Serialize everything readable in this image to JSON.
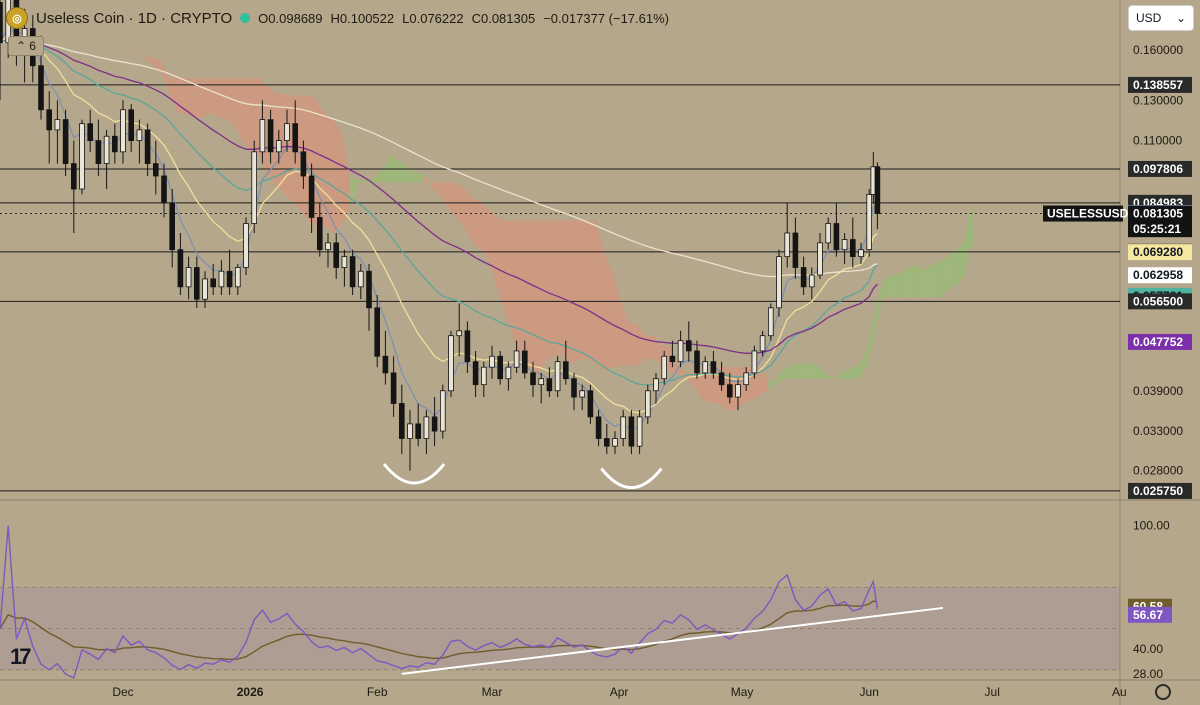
{
  "header": {
    "symbol_title": "Useless Coin · 1D · CRYPTO",
    "open": "O0.098689",
    "high": "H0.100522",
    "low": "L0.076222",
    "close": "C0.081305",
    "change": "−0.017377 (−17.61%)",
    "indicator_count": "6"
  },
  "currency_selector": {
    "value": "USD"
  },
  "colors": {
    "background": "#b4a78b",
    "rsi_line": "#7e57c2",
    "rsi_ma": "#6f5d2a",
    "ema_fast": "#7f90b0",
    "ema_yellow": "#efe19a",
    "ema_teal": "#5aa79a",
    "ema_purple": "#7b2f8a",
    "ema_white": "#ece2cd",
    "cloud_red": "#e08f7a",
    "cloud_green": "#8ec46e"
  },
  "chart_data": {
    "type": "candlestick",
    "symbol": "USELESSUSD",
    "price_scale": "log",
    "ylim": [
      0.0248,
      0.197
    ],
    "x_axis_ticks": [
      {
        "label": "Dec",
        "day": 30
      },
      {
        "label": "2026",
        "day": 61
      },
      {
        "label": "Feb",
        "day": 92
      },
      {
        "label": "Mar",
        "day": 120
      },
      {
        "label": "Apr",
        "day": 151
      },
      {
        "label": "May",
        "day": 181
      },
      {
        "label": "Jun",
        "day": 212
      },
      {
        "label": "Jul",
        "day": 242
      },
      {
        "label": "Au",
        "day": 273
      }
    ],
    "y_axis_ticks": [
      "0.160000",
      "0.130000",
      "0.110000",
      "0.039000",
      "0.033000",
      "0.028000"
    ],
    "horizontal_levels": [
      0.138557,
      0.097806,
      0.084983,
      0.069371,
      0.0565,
      0.02575
    ],
    "price_labels": [
      {
        "text": "0.138557",
        "value": 0.138557,
        "bg": "#2a2a2a",
        "fg": "#ffffff"
      },
      {
        "text": "0.097806",
        "value": 0.097806,
        "bg": "#2a2a2a",
        "fg": "#ffffff"
      },
      {
        "text": "0.084983",
        "value": 0.084983,
        "bg": "#2a2a2a",
        "fg": "#ffffff"
      },
      {
        "text": "0.081481",
        "value": 0.081481,
        "bg": "#9ec1ee",
        "fg": "#131722"
      },
      {
        "text": "0.081305",
        "value": 0.081305,
        "bg": "#131313",
        "fg": "#ffffff"
      },
      {
        "text": "05:25:21",
        "value": 0.0762,
        "bg": "#131313",
        "fg": "#ffffff"
      },
      {
        "text": "0.069371",
        "value": 0.069371,
        "bg": "#2a2a2a",
        "fg": "#ffffff"
      },
      {
        "text": "0.069280",
        "value": 0.06928,
        "bg": "#f5e7a0",
        "fg": "#131722"
      },
      {
        "text": "0.062958",
        "value": 0.062958,
        "bg": "#ffffff",
        "fg": "#131722"
      },
      {
        "text": "0.057781",
        "value": 0.057781,
        "bg": "#4fb3a2",
        "fg": "#131722"
      },
      {
        "text": "0.056500",
        "value": 0.0565,
        "bg": "#2a2a2a",
        "fg": "#ffffff"
      },
      {
        "text": "0.047752",
        "value": 0.047752,
        "bg": "#7b2fa8",
        "fg": "#ffffff"
      },
      {
        "text": "0.025750",
        "value": 0.02575,
        "bg": "#2a2a2a",
        "fg": "#ffffff"
      }
    ],
    "symbol_label": "USELESSUSD",
    "last_price": 0.081305,
    "candles": [
      [
        0,
        0.195,
        0.2,
        0.13,
        0.165
      ],
      [
        2,
        0.165,
        0.21,
        0.155,
        0.2
      ],
      [
        4,
        0.2,
        0.205,
        0.15,
        0.16
      ],
      [
        6,
        0.16,
        0.19,
        0.14,
        0.175
      ],
      [
        8,
        0.175,
        0.185,
        0.14,
        0.15
      ],
      [
        10,
        0.15,
        0.17,
        0.12,
        0.125
      ],
      [
        12,
        0.125,
        0.135,
        0.1,
        0.115
      ],
      [
        14,
        0.115,
        0.13,
        0.1,
        0.12
      ],
      [
        16,
        0.12,
        0.125,
        0.095,
        0.1
      ],
      [
        18,
        0.1,
        0.11,
        0.075,
        0.09
      ],
      [
        20,
        0.09,
        0.12,
        0.088,
        0.118
      ],
      [
        22,
        0.118,
        0.125,
        0.105,
        0.11
      ],
      [
        24,
        0.11,
        0.12,
        0.095,
        0.1
      ],
      [
        26,
        0.1,
        0.115,
        0.09,
        0.112
      ],
      [
        28,
        0.112,
        0.118,
        0.1,
        0.105
      ],
      [
        30,
        0.105,
        0.13,
        0.1,
        0.125
      ],
      [
        32,
        0.125,
        0.128,
        0.105,
        0.11
      ],
      [
        34,
        0.11,
        0.12,
        0.1,
        0.115
      ],
      [
        36,
        0.115,
        0.118,
        0.095,
        0.1
      ],
      [
        38,
        0.1,
        0.11,
        0.088,
        0.095
      ],
      [
        40,
        0.095,
        0.1,
        0.08,
        0.085
      ],
      [
        42,
        0.085,
        0.09,
        0.065,
        0.07
      ],
      [
        44,
        0.07,
        0.075,
        0.058,
        0.06
      ],
      [
        46,
        0.06,
        0.068,
        0.057,
        0.065
      ],
      [
        48,
        0.065,
        0.068,
        0.055,
        0.057
      ],
      [
        50,
        0.057,
        0.064,
        0.055,
        0.062
      ],
      [
        52,
        0.062,
        0.066,
        0.058,
        0.06
      ],
      [
        54,
        0.06,
        0.067,
        0.058,
        0.064
      ],
      [
        56,
        0.064,
        0.07,
        0.058,
        0.06
      ],
      [
        58,
        0.06,
        0.066,
        0.058,
        0.065
      ],
      [
        60,
        0.065,
        0.08,
        0.063,
        0.078
      ],
      [
        62,
        0.078,
        0.11,
        0.075,
        0.105
      ],
      [
        64,
        0.105,
        0.13,
        0.1,
        0.12
      ],
      [
        66,
        0.12,
        0.125,
        0.1,
        0.105
      ],
      [
        68,
        0.105,
        0.115,
        0.1,
        0.11
      ],
      [
        70,
        0.11,
        0.125,
        0.105,
        0.118
      ],
      [
        72,
        0.118,
        0.13,
        0.1,
        0.105
      ],
      [
        74,
        0.105,
        0.11,
        0.09,
        0.095
      ],
      [
        76,
        0.095,
        0.1,
        0.075,
        0.08
      ],
      [
        78,
        0.08,
        0.085,
        0.068,
        0.07
      ],
      [
        80,
        0.07,
        0.075,
        0.065,
        0.072
      ],
      [
        82,
        0.072,
        0.075,
        0.062,
        0.065
      ],
      [
        84,
        0.065,
        0.07,
        0.06,
        0.068
      ],
      [
        86,
        0.068,
        0.07,
        0.058,
        0.06
      ],
      [
        88,
        0.06,
        0.066,
        0.057,
        0.064
      ],
      [
        90,
        0.064,
        0.066,
        0.05,
        0.055
      ],
      [
        92,
        0.055,
        0.058,
        0.043,
        0.045
      ],
      [
        94,
        0.045,
        0.05,
        0.04,
        0.042
      ],
      [
        96,
        0.042,
        0.045,
        0.035,
        0.037
      ],
      [
        98,
        0.037,
        0.04,
        0.03,
        0.032
      ],
      [
        100,
        0.032,
        0.036,
        0.028,
        0.034
      ],
      [
        102,
        0.034,
        0.037,
        0.031,
        0.032
      ],
      [
        104,
        0.032,
        0.036,
        0.03,
        0.035
      ],
      [
        106,
        0.035,
        0.038,
        0.031,
        0.033
      ],
      [
        108,
        0.033,
        0.04,
        0.032,
        0.039
      ],
      [
        110,
        0.039,
        0.05,
        0.038,
        0.049
      ],
      [
        112,
        0.049,
        0.056,
        0.045,
        0.05
      ],
      [
        114,
        0.05,
        0.052,
        0.042,
        0.044
      ],
      [
        116,
        0.044,
        0.046,
        0.038,
        0.04
      ],
      [
        118,
        0.04,
        0.044,
        0.038,
        0.043
      ],
      [
        120,
        0.043,
        0.047,
        0.041,
        0.045
      ],
      [
        122,
        0.045,
        0.046,
        0.04,
        0.041
      ],
      [
        124,
        0.041,
        0.044,
        0.039,
        0.043
      ],
      [
        126,
        0.043,
        0.048,
        0.042,
        0.046
      ],
      [
        128,
        0.046,
        0.048,
        0.041,
        0.042
      ],
      [
        130,
        0.042,
        0.044,
        0.038,
        0.04
      ],
      [
        132,
        0.04,
        0.042,
        0.037,
        0.041
      ],
      [
        134,
        0.041,
        0.043,
        0.038,
        0.039
      ],
      [
        136,
        0.039,
        0.045,
        0.038,
        0.044
      ],
      [
        138,
        0.044,
        0.048,
        0.04,
        0.041
      ],
      [
        140,
        0.041,
        0.042,
        0.036,
        0.038
      ],
      [
        142,
        0.038,
        0.04,
        0.036,
        0.039
      ],
      [
        144,
        0.039,
        0.04,
        0.034,
        0.035
      ],
      [
        146,
        0.035,
        0.036,
        0.031,
        0.032
      ],
      [
        148,
        0.032,
        0.034,
        0.03,
        0.031
      ],
      [
        150,
        0.031,
        0.033,
        0.03,
        0.032
      ],
      [
        152,
        0.032,
        0.036,
        0.031,
        0.035
      ],
      [
        154,
        0.035,
        0.036,
        0.03,
        0.031
      ],
      [
        156,
        0.031,
        0.036,
        0.03,
        0.035
      ],
      [
        158,
        0.035,
        0.04,
        0.034,
        0.039
      ],
      [
        160,
        0.039,
        0.042,
        0.037,
        0.041
      ],
      [
        162,
        0.041,
        0.046,
        0.04,
        0.045
      ],
      [
        164,
        0.045,
        0.048,
        0.043,
        0.044
      ],
      [
        166,
        0.044,
        0.05,
        0.043,
        0.048
      ],
      [
        168,
        0.048,
        0.052,
        0.044,
        0.046
      ],
      [
        170,
        0.046,
        0.048,
        0.041,
        0.042
      ],
      [
        172,
        0.042,
        0.045,
        0.041,
        0.044
      ],
      [
        174,
        0.044,
        0.046,
        0.041,
        0.042
      ],
      [
        176,
        0.042,
        0.044,
        0.039,
        0.04
      ],
      [
        178,
        0.04,
        0.042,
        0.037,
        0.038
      ],
      [
        180,
        0.038,
        0.041,
        0.036,
        0.04
      ],
      [
        182,
        0.04,
        0.043,
        0.039,
        0.042
      ],
      [
        184,
        0.042,
        0.047,
        0.041,
        0.046
      ],
      [
        186,
        0.046,
        0.05,
        0.045,
        0.049
      ],
      [
        188,
        0.049,
        0.056,
        0.048,
        0.055
      ],
      [
        190,
        0.055,
        0.07,
        0.053,
        0.068
      ],
      [
        192,
        0.068,
        0.085,
        0.065,
        0.075
      ],
      [
        194,
        0.075,
        0.08,
        0.062,
        0.065
      ],
      [
        196,
        0.065,
        0.068,
        0.058,
        0.06
      ],
      [
        198,
        0.06,
        0.065,
        0.057,
        0.063
      ],
      [
        200,
        0.063,
        0.075,
        0.062,
        0.072
      ],
      [
        202,
        0.072,
        0.08,
        0.07,
        0.078
      ],
      [
        204,
        0.078,
        0.085,
        0.068,
        0.07
      ],
      [
        206,
        0.07,
        0.075,
        0.066,
        0.073
      ],
      [
        208,
        0.073,
        0.08,
        0.065,
        0.068
      ],
      [
        210,
        0.068,
        0.072,
        0.066,
        0.07
      ],
      [
        212,
        0.07,
        0.09,
        0.068,
        0.088
      ],
      [
        213,
        0.088,
        0.105,
        0.085,
        0.098689
      ],
      [
        214,
        0.098689,
        0.100522,
        0.076222,
        0.081305
      ]
    ],
    "rsi": {
      "label": "RSI",
      "ylim": [
        25,
        110
      ],
      "y_axis_ticks": [
        100,
        40,
        28
      ],
      "bands": [
        70,
        50,
        30
      ],
      "rsi_label": "56.67",
      "ma_label": "60.58",
      "rsi_value": 56.67,
      "ma_value": 60.58
    },
    "annotations": [
      {
        "type": "trendline",
        "from": [
          98,
          28
        ],
        "to": [
          230,
          60
        ]
      },
      {
        "type": "arc",
        "center_day": 101,
        "value": 0.0265
      },
      {
        "type": "arc",
        "center_day": 154,
        "value": 0.026
      }
    ]
  }
}
